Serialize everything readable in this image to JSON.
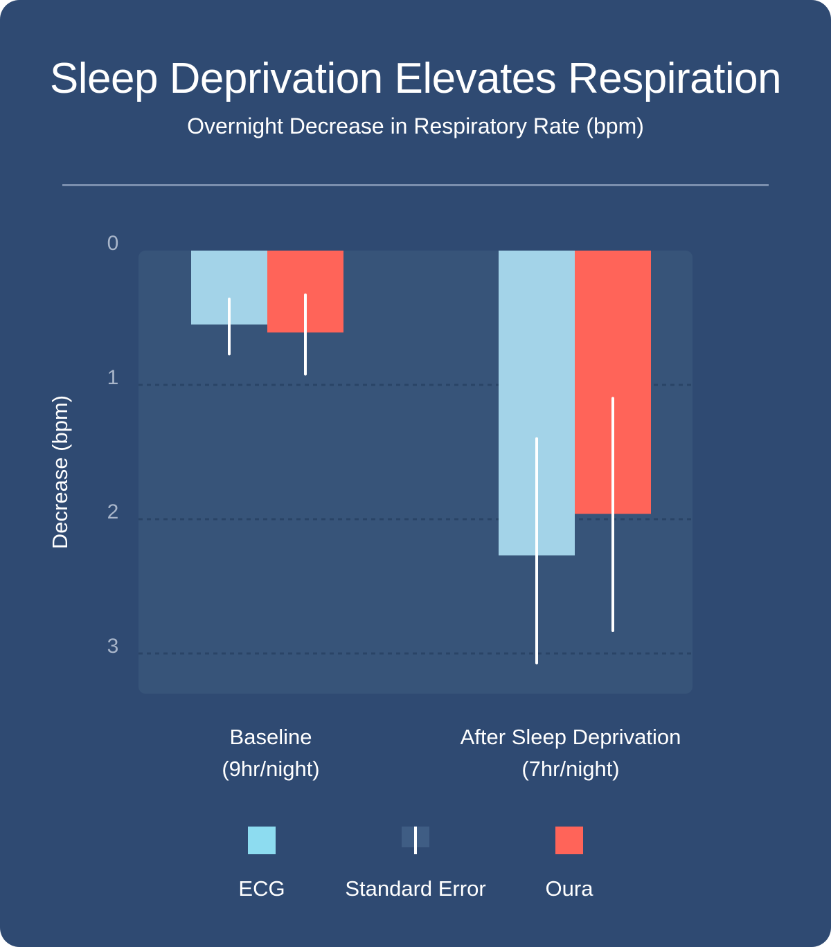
{
  "chart_data": {
    "type": "bar",
    "title": "Sleep Deprivation Elevates Respiration",
    "subtitle": "Overnight Decrease in Respiratory Rate (bpm)",
    "ylabel": "Decrease (bpm)",
    "ylim": [
      0,
      3.3
    ],
    "y_inverted": true,
    "yticks": [
      "0",
      "1",
      "2",
      "3"
    ],
    "grid": "dashed horizontal at 1, 2, 3",
    "categories": [
      {
        "line1": "Baseline",
        "line2": "(9hr/night)"
      },
      {
        "line1": "After Sleep Deprivation",
        "line2": "(7hr/night)"
      }
    ],
    "series": [
      {
        "name": "ECG",
        "color": "#a3d3e8",
        "values": [
          0.55,
          2.27
        ],
        "error_low": [
          0.36,
          1.4
        ],
        "error_high": [
          0.77,
          3.07
        ]
      },
      {
        "name": "Oura",
        "color": "#ff6459",
        "values": [
          0.61,
          1.96
        ],
        "error_low": [
          0.33,
          1.1
        ],
        "error_high": [
          0.92,
          2.83
        ]
      }
    ],
    "legend": {
      "placement": "bottom",
      "items": [
        {
          "label": "ECG",
          "color": "#8ddcf0",
          "icon": "ecg-swatch"
        },
        {
          "label": "Standard Error",
          "color": "#3f5d84",
          "icon": "error-bar-swatch"
        },
        {
          "label": "Oura",
          "color": "#ff6459",
          "icon": "oura-swatch"
        }
      ]
    }
  }
}
